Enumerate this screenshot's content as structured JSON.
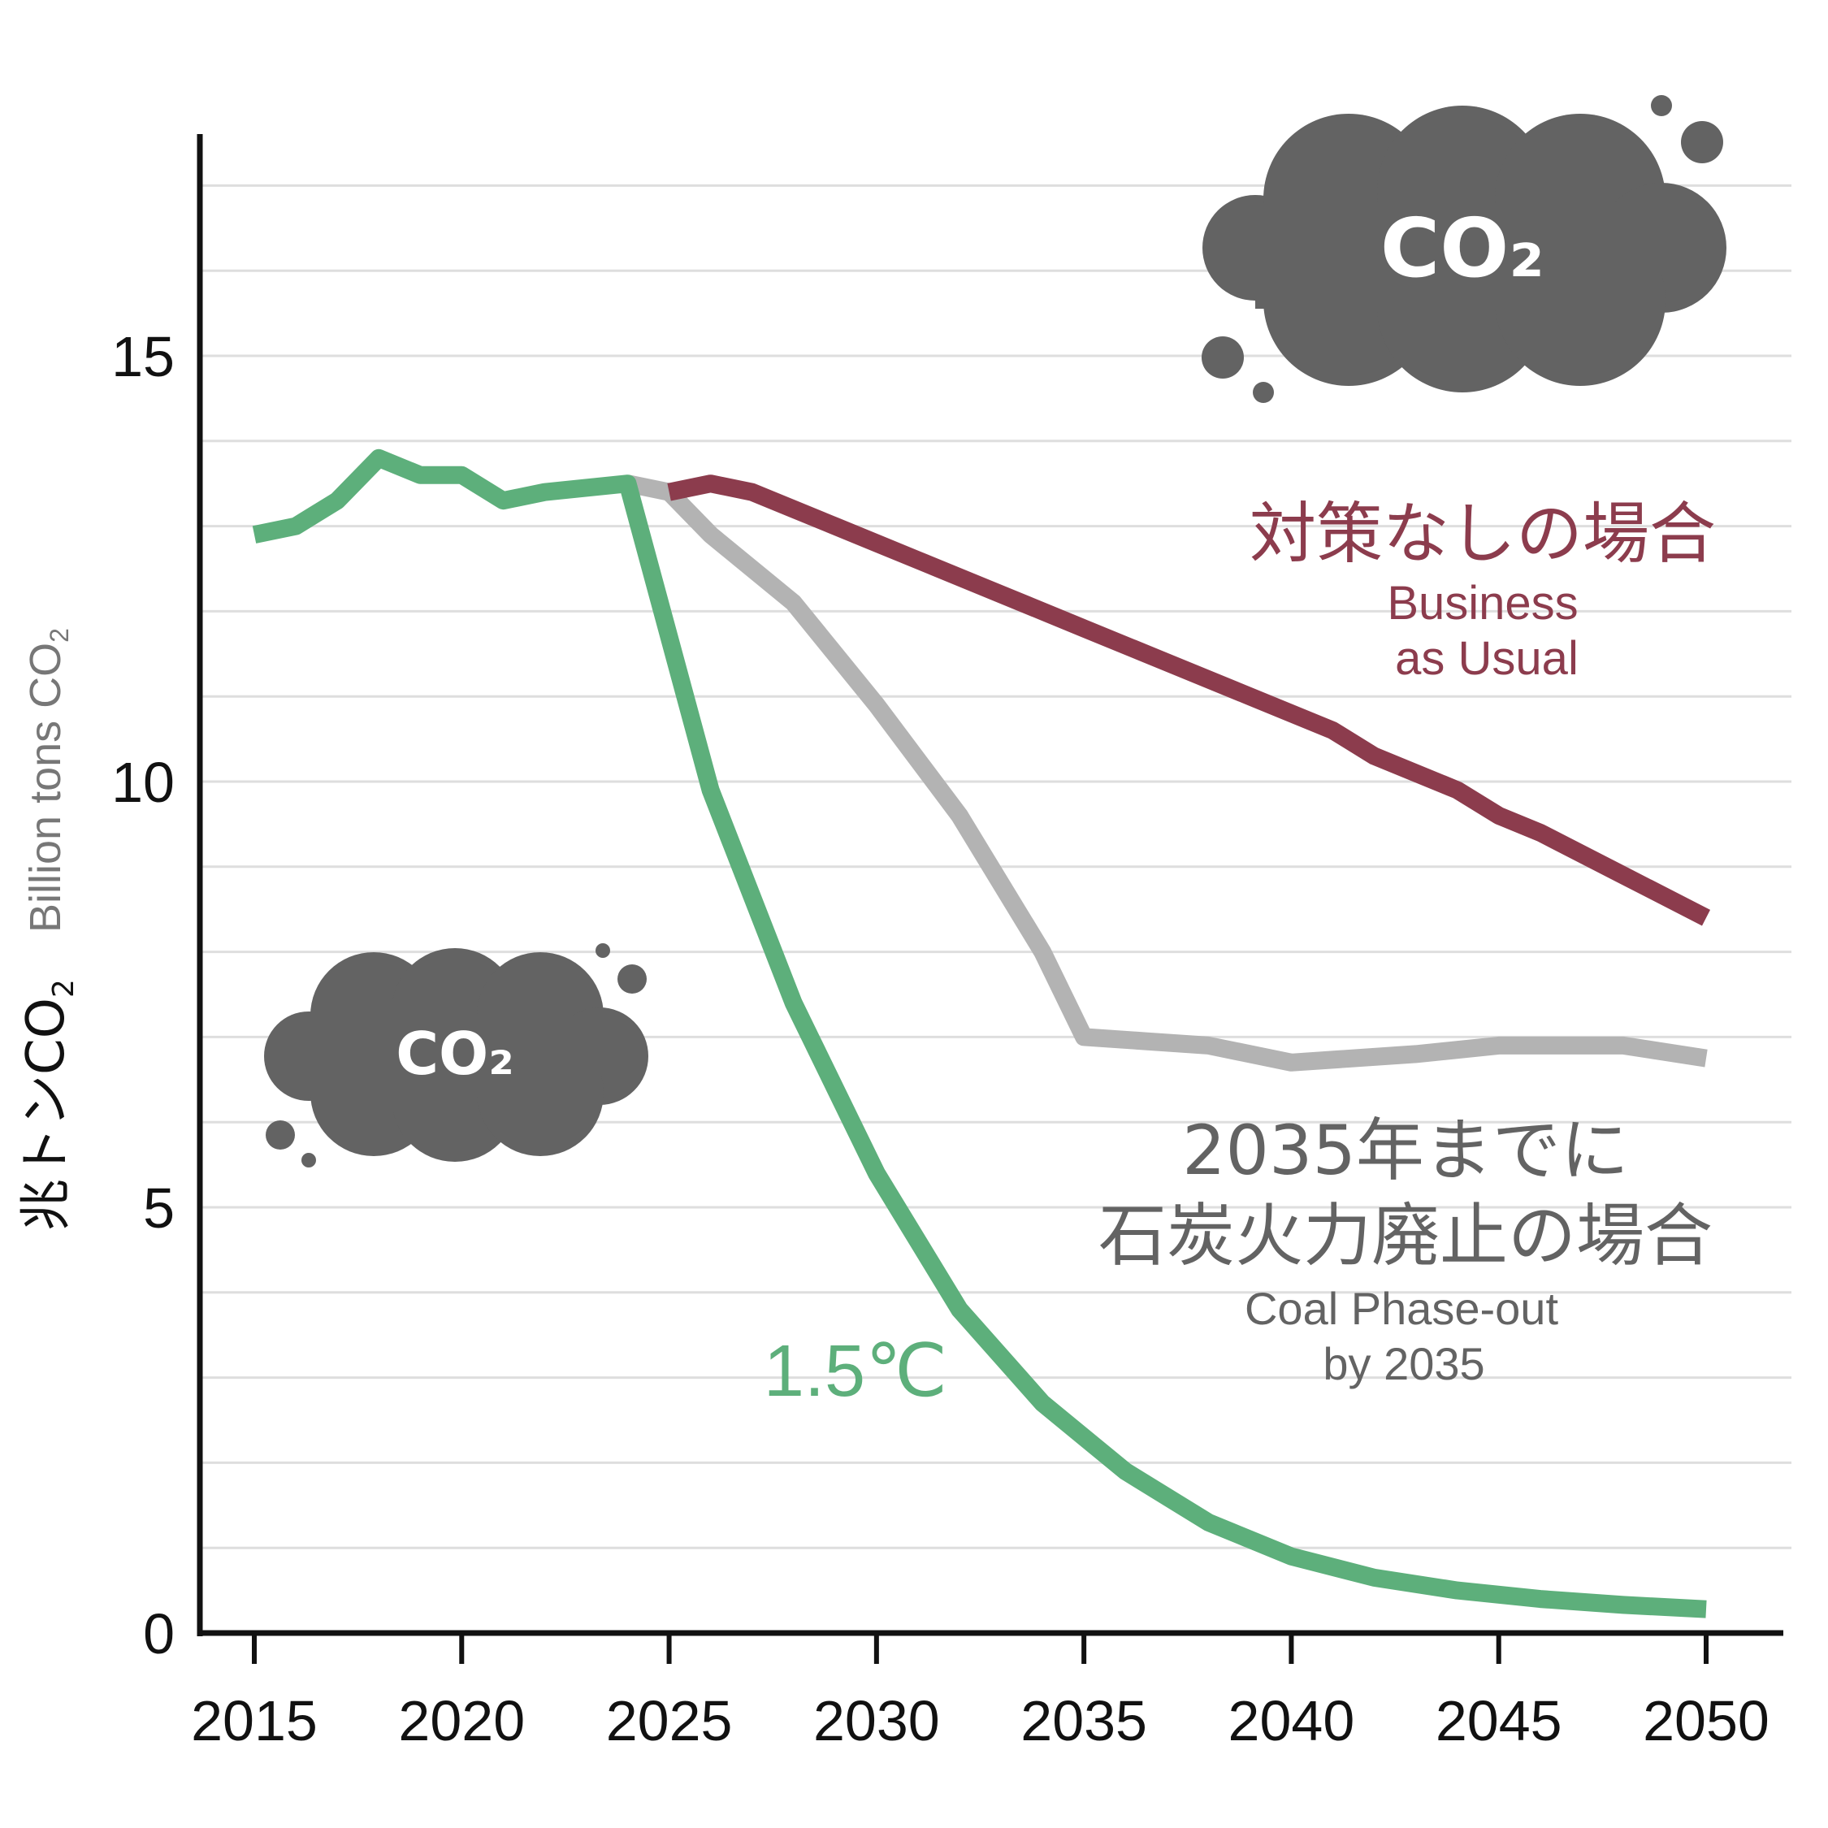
{
  "chart_data": {
    "type": "line",
    "ylabel_jp": "兆トンCO",
    "ylabel_jp_sub": "2",
    "ylabel_en": "Billion tons CO",
    "ylabel_en_sub": "2",
    "x_ticks": [
      2015,
      2020,
      2025,
      2030,
      2035,
      2040,
      2045,
      2050
    ],
    "y_ticks": [
      0,
      5,
      10,
      15
    ],
    "xlim": [
      2013.5,
      2052
    ],
    "ylim": [
      0,
      17.6
    ],
    "minor_grid_step": 1,
    "series": [
      {
        "name": "1.5℃",
        "color": "#5daf7b",
        "x": [
          2015,
          2016,
          2017,
          2018,
          2019,
          2020,
          2021,
          2022,
          2023,
          2024,
          2026,
          2028,
          2030,
          2032,
          2034,
          2036,
          2038,
          2040,
          2042,
          2044,
          2046,
          2048,
          2050
        ],
        "y": [
          12.9,
          13.0,
          13.3,
          13.8,
          13.6,
          13.6,
          13.3,
          13.4,
          13.45,
          13.5,
          9.9,
          7.4,
          5.4,
          3.8,
          2.7,
          1.9,
          1.3,
          0.9,
          0.65,
          0.5,
          0.4,
          0.33,
          0.28
        ]
      },
      {
        "name": "2035年までに石炭火力廃止の場合",
        "name_line2": "",
        "color": "#b3b3b3",
        "x": [
          2024,
          2025,
          2026,
          2028,
          2030,
          2032,
          2034,
          2035,
          2038,
          2040,
          2043,
          2045,
          2048,
          2050
        ],
        "y": [
          13.5,
          13.4,
          12.9,
          12.1,
          10.9,
          9.6,
          8.0,
          7.0,
          6.9,
          6.7,
          6.8,
          6.9,
          6.9,
          6.75
        ]
      },
      {
        "name": "対策なしの場合",
        "color": "#8c3c4d",
        "x": [
          2025,
          2026,
          2027,
          2029,
          2030,
          2031,
          2033,
          2035,
          2037,
          2039,
          2041,
          2042,
          2044,
          2045,
          2046,
          2048,
          2050
        ],
        "y": [
          13.4,
          13.5,
          13.4,
          13.0,
          12.8,
          12.6,
          12.2,
          11.8,
          11.4,
          11.0,
          10.6,
          10.3,
          9.9,
          9.6,
          9.4,
          8.9,
          8.4
        ]
      }
    ],
    "annotations": {
      "bau_jp": "対策なしの場合",
      "bau_en_1": "Business",
      "bau_en_2": "as Usual",
      "coal_jp_1": "2035年までに",
      "coal_jp_2": "石炭火力廃止の場合",
      "coal_en_1": "Coal Phase-out",
      "coal_en_2": "by 2035",
      "target_label": "1.5℃"
    },
    "clouds": {
      "label": "CO₂",
      "color": "#636363"
    }
  }
}
